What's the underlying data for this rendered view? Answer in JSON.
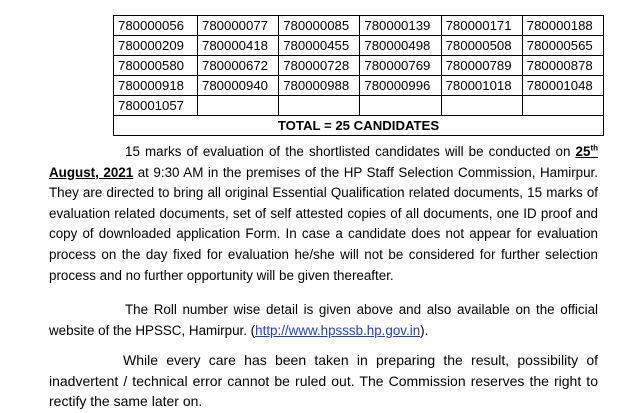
{
  "table": {
    "rows": [
      [
        "780000056",
        "780000077",
        "780000085",
        "780000139",
        "780000171",
        "780000188"
      ],
      [
        "780000209",
        "780000418",
        "780000455",
        "780000498",
        "780000508",
        "780000565"
      ],
      [
        "780000580",
        "780000672",
        "780000728",
        "780000769",
        "780000789",
        "780000878"
      ],
      [
        "780000918",
        "780000940",
        "780000988",
        "780000996",
        "780001018",
        "780001048"
      ],
      [
        "780001057",
        "",
        "",
        "",
        "",
        ""
      ]
    ],
    "total": "TOTAL = 25 CANDIDATES"
  },
  "para1": {
    "intro": "15 marks of evaluation of the shortlisted candidates will be conducted on ",
    "date_day": "25",
    "date_suffix": "th",
    "date_rest": "August, 2021",
    "body": " at 9:30 AM in the premises of the HP Staff Selection Commission, Hamirpur. They are directed to bring all original Essential Qualification related documents, 15 marks of evaluation related documents, set of self attested copies of all documents, one ID proof and copy of downloaded application Form. In case a candidate does not appear for evaluation process on the day fixed for evaluation he/she will not be considered for further selection process and no further opportunity will be given thereafter."
  },
  "para2": {
    "text": "The Roll number wise detail is given above and also available on the official website of the HPSSC, Hamirpur. (",
    "link": "http://www.hpsssb.hp.gov.in",
    "end": ")."
  },
  "para3": {
    "text": "While every care has been taken in preparing the result, possibility of inadvertent / technical error cannot be ruled out. The Commission reserves the right to rectify the same later on."
  }
}
